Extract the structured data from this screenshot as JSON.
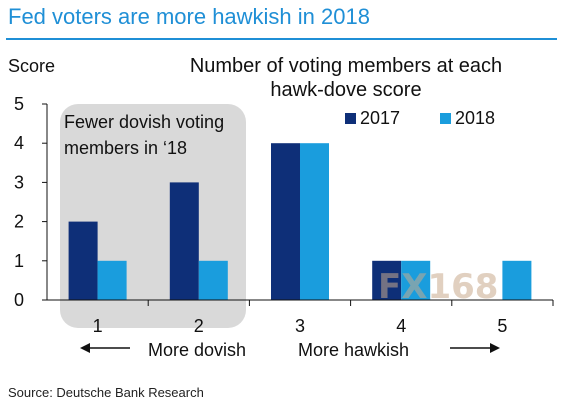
{
  "chart_title": "Fed voters are more hawkish in 2018",
  "source": "Source: Deutsche Bank Research",
  "colors": {
    "title": "#1f8fd6",
    "series_2017": "#0e2f78",
    "series_2018": "#1a9ddd",
    "highlight_box": "#d9d9d9"
  },
  "watermark_text": "FX168",
  "chart_data": {
    "type": "bar",
    "title": "Number of voting members at each hawk-dove score",
    "ylabel": "Score",
    "xlabel": "",
    "categories": [
      "1",
      "2",
      "3",
      "4",
      "5"
    ],
    "series": [
      {
        "name": "2017",
        "values": [
          2,
          3,
          4,
          1,
          0
        ]
      },
      {
        "name": "2018",
        "values": [
          1,
          1,
          4,
          1,
          1
        ]
      }
    ],
    "ylim": [
      0,
      5
    ],
    "yticks": [
      "0",
      "1",
      "2",
      "3",
      "4",
      "5"
    ],
    "legend_position": "top-right",
    "grid": false,
    "annotations": {
      "box_label_line1": "Fewer dovish voting",
      "box_label_line2": "members in ‘18",
      "left_label": "More dovish",
      "right_label": "More hawkish"
    }
  }
}
